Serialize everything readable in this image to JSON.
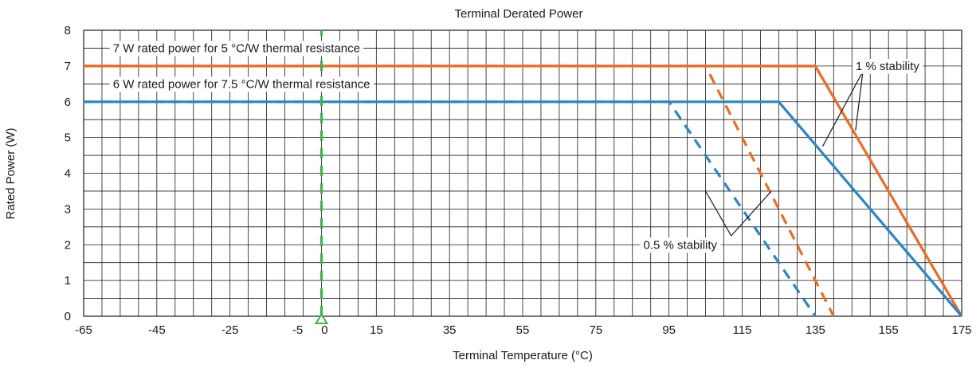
{
  "chart_data": {
    "type": "line",
    "title": "Terminal Derated Power",
    "xlabel": "Terminal Temperature (°C)",
    "ylabel": "Rated Power (W)",
    "xlim": [
      -65,
      175
    ],
    "ylim": [
      0,
      8
    ],
    "x_tick_labels": [
      "-65",
      "-45",
      "-25",
      "-5",
      "0",
      "15",
      "35",
      "55",
      "75",
      "95",
      "115",
      "135",
      "155",
      "175"
    ],
    "x_tick_values": [
      -65,
      -45,
      -25,
      -5,
      0,
      15,
      35,
      55,
      75,
      95,
      115,
      135,
      155,
      175
    ],
    "y_ticks": [
      0,
      1,
      2,
      3,
      4,
      5,
      6,
      7,
      8
    ],
    "grid": true,
    "grid_x_step": 5,
    "grid_y_step": 0.5,
    "marker_x": 0,
    "series": [
      {
        "key": "orange_1pct",
        "color": "#ed6b23",
        "dashed": false,
        "x": [
          -65,
          135,
          175
        ],
        "y": [
          7,
          7,
          0
        ]
      },
      {
        "key": "orange_05pct",
        "color": "#ed6b23",
        "dashed": true,
        "x": [
          -65,
          105,
          140
        ],
        "y": [
          7,
          7,
          0
        ]
      },
      {
        "key": "blue_1pct",
        "color": "#2a86c4",
        "dashed": false,
        "x": [
          -65,
          125,
          175
        ],
        "y": [
          6,
          6,
          0
        ]
      },
      {
        "key": "blue_05pct",
        "color": "#2a86c4",
        "dashed": true,
        "x": [
          -65,
          95,
          135
        ],
        "y": [
          6,
          6,
          0
        ]
      },
      {
        "key": "green_marker",
        "color": "#3bb44a",
        "dashed": true,
        "x": [
          0,
          0
        ],
        "y": [
          0,
          8
        ]
      }
    ],
    "annotations": [
      {
        "text": "7 W rated power for 5 °C/W thermal resistance",
        "x": -57,
        "y": 7.5,
        "box": true
      },
      {
        "text": "6 W rated power for 7.5 °C/W thermal resistance",
        "x": -57,
        "y": 6.5,
        "box": true
      },
      {
        "text": "1 % stability",
        "x": 146,
        "y": 7,
        "box": true
      },
      {
        "text": "0.5 % stability",
        "x": 88,
        "y": 2,
        "box": true
      }
    ],
    "pointers": [
      {
        "from_x": 148,
        "from_y": 6.85,
        "to_x": 137,
        "to_y": 4.75
      },
      {
        "from_x": 148,
        "from_y": 6.85,
        "to_x": 146,
        "to_y": 5.2
      },
      {
        "from_x": 112,
        "from_y": 2.25,
        "to_x": 105,
        "to_y": 3.5
      },
      {
        "from_x": 112,
        "from_y": 2.25,
        "to_x": 123,
        "to_y": 3.5
      }
    ]
  }
}
